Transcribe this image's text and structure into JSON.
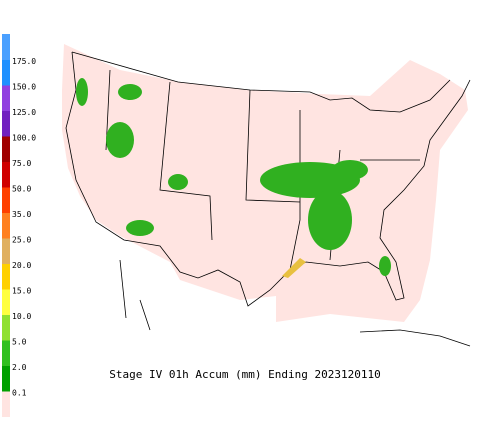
{
  "legend": {
    "labels": [
      "175.0",
      "150.0",
      "125.0",
      "100.0",
      "75.0",
      "50.0",
      "35.0",
      "25.0",
      "20.0",
      "15.0",
      "10.0",
      "5.0",
      "2.0",
      "0.1"
    ],
    "colors": [
      "#4aa0ff",
      "#1e90ff",
      "#9040e0",
      "#7020c0",
      "#a00000",
      "#d00000",
      "#ff4000",
      "#ff8020",
      "#e0b060",
      "#ffd000",
      "#ffff40",
      "#90e030",
      "#30c020",
      "#00a000",
      "#ffe4e1"
    ]
  },
  "title": "Stage IV 01h Accum (mm) Ending 2023120110"
}
